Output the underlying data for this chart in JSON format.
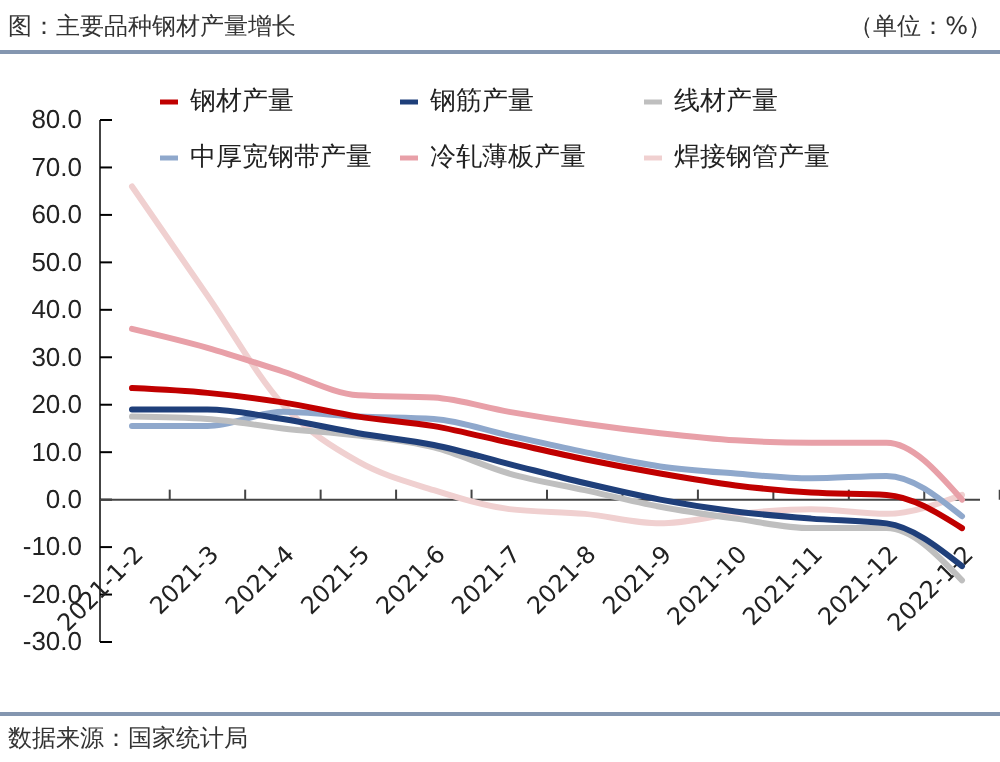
{
  "chart_data": {
    "type": "line",
    "title": "图：主要品种钢材产量增长",
    "ylabel": "（单位：%）",
    "annotations": [
      "数据来源：国家统计局"
    ],
    "categories": [
      "2021-1-2",
      "2021-3",
      "2021-4",
      "2021-5",
      "2021-6",
      "2021-7",
      "2021-8",
      "2021-9",
      "2021-10",
      "2021-11",
      "2021-12",
      "2022-1-2"
    ],
    "series": [
      {
        "name": "钢材产量",
        "color": "#c00000",
        "values": [
          23.5,
          22.5,
          20.5,
          17.5,
          15.5,
          12,
          8.5,
          5.5,
          3,
          1.5,
          1,
          -6
        ]
      },
      {
        "name": "钢筋产量",
        "color": "#1f3f7a",
        "values": [
          19,
          19,
          17,
          14,
          11.5,
          7.5,
          3.5,
          0,
          -2.5,
          -4,
          -5,
          -14
        ]
      },
      {
        "name": "线材产量",
        "color": "#bfbfbf",
        "values": [
          17.5,
          17,
          15,
          13.5,
          11,
          5.5,
          2,
          -1.5,
          -4,
          -6,
          -6,
          -17
        ]
      },
      {
        "name": "中厚宽钢带产量",
        "color": "#8fa8cc",
        "values": [
          15.5,
          15.5,
          18.5,
          17.5,
          17,
          13.5,
          10,
          7,
          5.5,
          4.5,
          5,
          -3.5
        ]
      },
      {
        "name": "冷轧薄板产量",
        "color": "#e8a0a8",
        "values": [
          36,
          32,
          27,
          22,
          21.5,
          18.5,
          16,
          14,
          12.5,
          12,
          12,
          0
        ]
      },
      {
        "name": "焊接钢管产量",
        "color": "#f0d0d0",
        "values": [
          66,
          43,
          20,
          8,
          2,
          -2,
          -3,
          -5,
          -3,
          -2,
          -3,
          1
        ]
      }
    ],
    "ylim": [
      -30,
      80
    ],
    "yticks": [
      {
        "value": -30,
        "label": "-30.0"
      },
      {
        "value": -20,
        "label": "-20.0"
      },
      {
        "value": -10,
        "label": "-10.0"
      },
      {
        "value": 0,
        "label": "0.0"
      },
      {
        "value": 10,
        "label": "10.0"
      },
      {
        "value": 20,
        "label": "20.0"
      },
      {
        "value": 30,
        "label": "30.0"
      },
      {
        "value": 40,
        "label": "40.0"
      },
      {
        "value": 50,
        "label": "50.0"
      },
      {
        "value": 60,
        "label": "60.0"
      },
      {
        "value": 70,
        "label": "70.0"
      },
      {
        "value": 80,
        "label": "80.0"
      }
    ],
    "grid": false,
    "legend": "top",
    "marker": "none",
    "line_style": "solid"
  }
}
